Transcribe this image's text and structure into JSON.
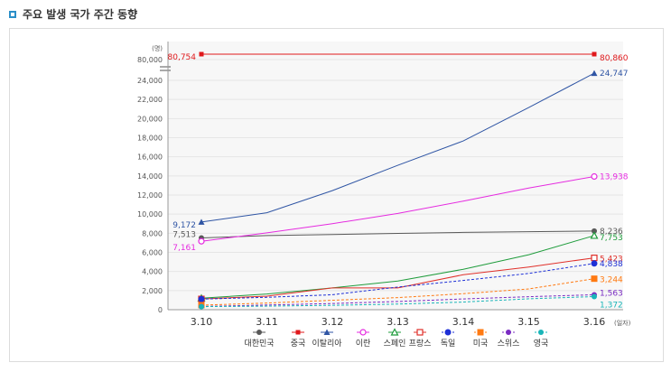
{
  "header": {
    "title": "주요 발생 국가 주간 동향"
  },
  "chart_data": {
    "type": "line",
    "unit_y": "(명)",
    "unit_x": "(일자)",
    "x": [
      "3.10",
      "3.11",
      "3.12",
      "3.13",
      "3.14",
      "3.15",
      "3.16"
    ],
    "y_ticks": [
      0,
      2000,
      4000,
      6000,
      8000,
      10000,
      12000,
      14000,
      16000,
      18000,
      20000,
      22000,
      24000
    ],
    "y_tick_labels": [
      "0",
      "2,000",
      "4,000",
      "6,000",
      "8,000",
      "10,000",
      "12,000",
      "14,000",
      "16,000",
      "18,000",
      "20,000",
      "22,000",
      "24,000"
    ],
    "y_break_label": "80,000",
    "ylim": [
      0,
      26000
    ],
    "series": [
      {
        "name": "대한민국",
        "color": "#595959",
        "dash": false,
        "marker": "dot",
        "values": [
          7513,
          7755,
          7869,
          7979,
          8086,
          8162,
          8236
        ],
        "start_label": "7,513",
        "end_label": "8,236"
      },
      {
        "name": "중국",
        "color": "#e0181b",
        "dash": false,
        "marker": "square",
        "break": true,
        "values": [
          80754,
          80778,
          80793,
          80813,
          80824,
          80844,
          80860
        ],
        "start_label": "80,754",
        "end_label": "80,860"
      },
      {
        "name": "이탈리아",
        "color": "#2f55a4",
        "dash": false,
        "marker": "triangle",
        "values": [
          9172,
          10149,
          12462,
          15113,
          17660,
          21157,
          24747
        ],
        "start_label": "9,172",
        "end_label": "24,747"
      },
      {
        "name": "이란",
        "color": "#e52be0",
        "dash": false,
        "marker": "circle-open",
        "values": [
          7161,
          8042,
          9000,
          10075,
          11364,
          12729,
          13938
        ],
        "start_label": "7,161",
        "end_label": "13,938"
      },
      {
        "name": "스페인",
        "color": "#1f9c3c",
        "dash": false,
        "marker": "triangle-open",
        "values": [
          1204,
          1639,
          2277,
          3004,
          4231,
          5753,
          7753
        ],
        "end_label": "7,753"
      },
      {
        "name": "프랑스",
        "color": "#e0302a",
        "dash": false,
        "marker": "square-open",
        "values": [
          1126,
          1412,
          2281,
          2281,
          3661,
          4469,
          5423
        ],
        "end_label": "5,423"
      },
      {
        "name": "독일",
        "color": "#1d2fd6",
        "dash": true,
        "marker": "circle-half",
        "values": [
          1112,
          1296,
          1567,
          2369,
          3062,
          3795,
          4838
        ],
        "end_label": "4,838"
      },
      {
        "name": "미국",
        "color": "#ff7a12",
        "dash": true,
        "marker": "square-half",
        "values": [
          472,
          696,
          987,
          1264,
          1678,
          2174,
          3244
        ],
        "end_label": "3,244"
      },
      {
        "name": "스위스",
        "color": "#7a2bc2",
        "dash": true,
        "marker": "dot",
        "values": [
          332,
          491,
          645,
          858,
          1125,
          1359,
          1563
        ],
        "end_label": "1,563"
      },
      {
        "name": "영국",
        "color": "#19b5b8",
        "dash": true,
        "marker": "dot",
        "values": [
          319,
          373,
          456,
          590,
          798,
          1140,
          1372
        ],
        "end_label": "1,372"
      }
    ]
  }
}
